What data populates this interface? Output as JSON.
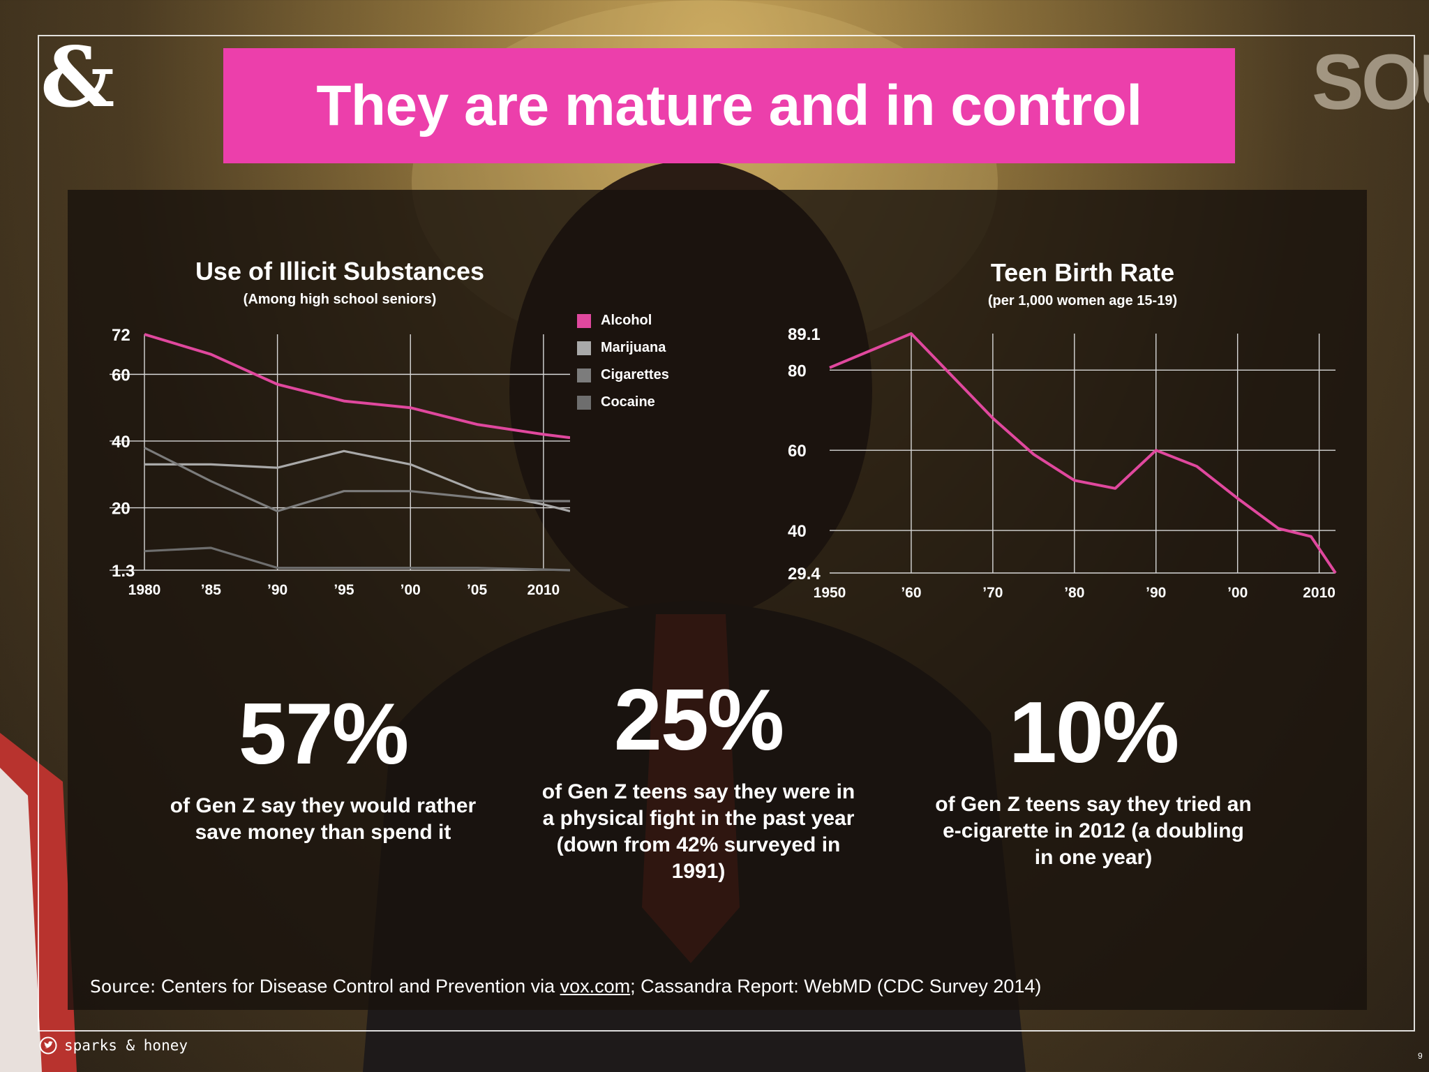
{
  "slide": {
    "logo": "&",
    "background_sign": "SOU",
    "title": "They are mature and in control",
    "title_color": "#ec3fab",
    "page_number": "9"
  },
  "chart_data": [
    {
      "type": "line",
      "title": "Use of Illicit Substances",
      "subtitle": "(Among high school seniors)",
      "x": [
        1980,
        1985,
        1990,
        1995,
        2000,
        2005,
        2010,
        2012
      ],
      "x_tick_labels": [
        "1980",
        "’85",
        "’90",
        "’95",
        "’00",
        "’05",
        "2010"
      ],
      "y_tick_labels": [
        "72",
        "60",
        "40",
        "20",
        "1.3"
      ],
      "ylim": [
        1.3,
        72
      ],
      "grid": true,
      "legend_position": "right",
      "series": [
        {
          "name": "Alcohol",
          "color": "#e0489e",
          "values": [
            72,
            66,
            57,
            52,
            50,
            45,
            42,
            41
          ]
        },
        {
          "name": "Marijuana",
          "color": "#a9a9a9",
          "values": [
            33,
            33,
            32,
            37,
            33,
            25,
            21,
            19
          ]
        },
        {
          "name": "Cigarettes",
          "color": "#7c7c7c",
          "values": [
            38,
            28,
            19,
            25,
            25,
            23,
            22,
            22
          ]
        },
        {
          "name": "Cocaine",
          "color": "#6e6e6e",
          "values": [
            7,
            8,
            2,
            2,
            2,
            2,
            1.5,
            1.3
          ]
        }
      ]
    },
    {
      "type": "line",
      "title": "Teen Birth Rate",
      "subtitle": "(per 1,000 women age 15-19)",
      "x": [
        1950,
        1960,
        1970,
        1975,
        1980,
        1985,
        1990,
        1995,
        2000,
        2005,
        2009,
        2012
      ],
      "x_tick_labels": [
        "1950",
        "’60",
        "’70",
        "’80",
        "’90",
        "’00",
        "2010"
      ],
      "y_tick_labels": [
        "89.1",
        "80",
        "60",
        "40",
        "29.4"
      ],
      "ylim": [
        29.4,
        89.1
      ],
      "grid": true,
      "series": [
        {
          "color": "#e0489e",
          "values": [
            80.6,
            89.1,
            68,
            59,
            52.5,
            50.5,
            60,
            56,
            48,
            40.5,
            38.5,
            29.4
          ]
        }
      ]
    }
  ],
  "stats": [
    {
      "value": "57%",
      "text": "of Gen Z say they would rather save money than spend it"
    },
    {
      "value": "25%",
      "text": "of Gen Z teens say they were in a physical fight in the past year (down from 42% surveyed in 1991)"
    },
    {
      "value": "10%",
      "text": "of Gen Z teens say they tried an e-cigarette in 2012 (a doubling in one year)"
    }
  ],
  "source": {
    "prefix": "Source:",
    "text_before_link": "Centers for Disease Control and Prevention via",
    "link": "vox.com",
    "text_after_link": "; Cassandra Report: WebMD (CDC Survey 2014)"
  },
  "footer": {
    "brand": "sparks & honey",
    "icon": "twitter-icon"
  }
}
